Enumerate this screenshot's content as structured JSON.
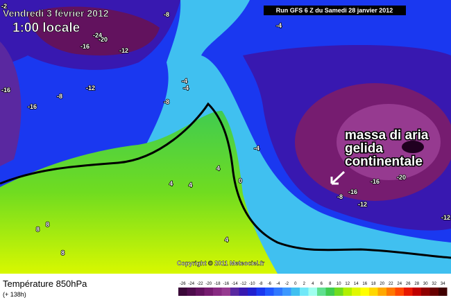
{
  "header": {
    "date": "Vendredi 3 février 2012",
    "time": "1:00 locale",
    "run": "Run GFS 6 Z du Samedi 28 janvier 2012"
  },
  "annotation": [
    "massa di aria",
    "gelida",
    "continentale"
  ],
  "copyright": "Copyright © 2011 Meteociel.fr",
  "contour_labels": [
    "-2",
    "-8",
    "-4",
    "-24",
    "-20",
    "-16",
    "-12",
    "-16",
    "-8",
    "-16",
    "-12",
    "-8",
    "-4",
    "-4",
    "-4",
    "0",
    "4",
    "4",
    "4",
    "4",
    "8",
    "8",
    "8",
    "-16",
    "-20",
    "-8",
    "-12",
    "-16",
    "-12"
  ],
  "footer": {
    "title": "Température 850hPa",
    "subtitle": "(+ 138h)"
  },
  "colorbar": {
    "ticks": [
      -26,
      -24,
      -22,
      -20,
      -18,
      -16,
      -14,
      -12,
      -10,
      -8,
      -6,
      -4,
      -2,
      0,
      2,
      4,
      6,
      8,
      10,
      12,
      14,
      16,
      18,
      20,
      22,
      24,
      26,
      28,
      30,
      32,
      34
    ],
    "colors": [
      "#3a0838",
      "#4e0c4c",
      "#62125e",
      "#761c70",
      "#882a82",
      "#963a90",
      "#5a28a0",
      "#3818b0",
      "#2020d0",
      "#1a38f0",
      "#2058ff",
      "#3078ff",
      "#3c98ff",
      "#40c0f0",
      "#70e8f8",
      "#a0fff0",
      "#60e090",
      "#40cc50",
      "#70dc20",
      "#b0f000",
      "#e0f800",
      "#ffff00",
      "#ffd800",
      "#ffa800",
      "#ff7800",
      "#ff4800",
      "#e81800",
      "#c00000",
      "#900000",
      "#680000",
      "#400000"
    ]
  }
}
